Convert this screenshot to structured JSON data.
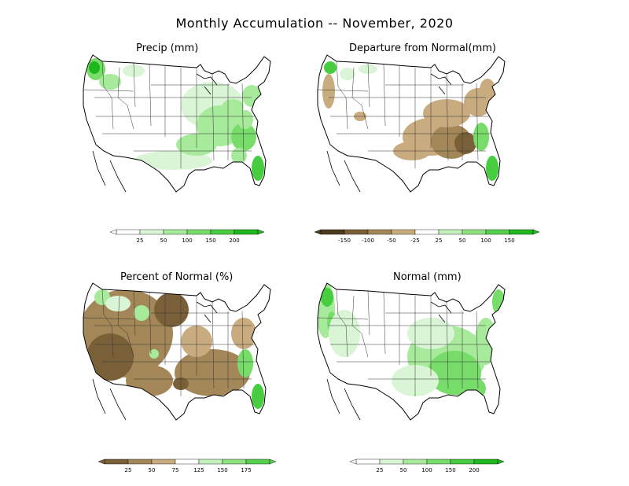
{
  "title": "Monthly Accumulation -- November, 2020",
  "panels": [
    {
      "title": "Precip (mm)",
      "legend": {
        "ticks": [
          "25",
          "50",
          "100",
          "150",
          "200"
        ],
        "colors": [
          "#ffffff",
          "#d9f5d6",
          "#a8ea9c",
          "#78dc6a",
          "#48cc40",
          "#1fb81c"
        ]
      }
    },
    {
      "title": "Departure from Normal(mm)",
      "legend": {
        "ticks": [
          "-150",
          "-100",
          "-50",
          "-25",
          "25",
          "50",
          "100",
          "150"
        ],
        "colors": [
          "#4d3b1d",
          "#7a6038",
          "#a38758",
          "#c9ab80",
          "#ffffff",
          "#c4f0bb",
          "#8fe280",
          "#55cf4c",
          "#22b820"
        ]
      }
    },
    {
      "title": "Percent of Normal (%)",
      "legend": {
        "ticks": [
          "25",
          "50",
          "75",
          "125",
          "150",
          "175"
        ],
        "colors": [
          "#7a6038",
          "#a38758",
          "#c9ab80",
          "#ffffff",
          "#c4f0bb",
          "#8fe280",
          "#55cf4c"
        ]
      }
    },
    {
      "title": "Normal (mm)",
      "legend": {
        "ticks": [
          "25",
          "50",
          "100",
          "150",
          "200"
        ],
        "colors": [
          "#ffffff",
          "#d9f5d6",
          "#a8ea9c",
          "#78dc6a",
          "#48cc40",
          "#1fb81c"
        ]
      }
    }
  ]
}
